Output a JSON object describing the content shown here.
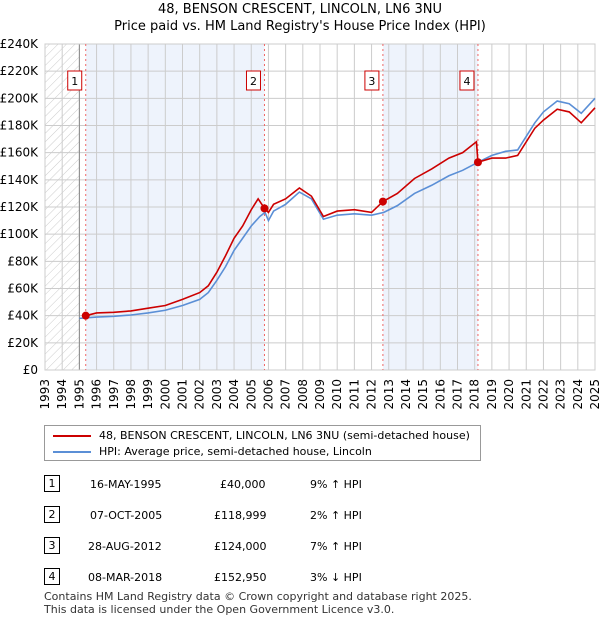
{
  "chart_data": {
    "type": "line",
    "title": "48, BENSON CRESCENT, LINCOLN, LN6 3NU",
    "subtitle": "Price paid vs. HM Land Registry's House Price Index (HPI)",
    "xlim": [
      1993,
      2025
    ],
    "ylim": [
      0,
      240000
    ],
    "x_ticks": [
      "1993",
      "1994",
      "1995",
      "1996",
      "1997",
      "1998",
      "1999",
      "2000",
      "2001",
      "2002",
      "2003",
      "2004",
      "2005",
      "2006",
      "2007",
      "2008",
      "2009",
      "2010",
      "2011",
      "2012",
      "2013",
      "2014",
      "2015",
      "2016",
      "2017",
      "2018",
      "2019",
      "2020",
      "2021",
      "2022",
      "2023",
      "2024",
      "2025"
    ],
    "y_ticks": [
      "£0",
      "£20K",
      "£40K",
      "£60K",
      "£80K",
      "£100K",
      "£120K",
      "£140K",
      "£160K",
      "£180K",
      "£200K",
      "£220K",
      "£240K"
    ],
    "grid": true,
    "series": [
      {
        "name": "48, BENSON CRESCENT, LINCOLN, LN6 3NU (semi-detached house)",
        "color": "#cc0000",
        "x": [
          1995.37,
          1996,
          1997,
          1998,
          1999,
          2000,
          2001,
          2002,
          2002.5,
          2003,
          2003.5,
          2004,
          2004.5,
          2005,
          2005.4,
          2005.77,
          2006,
          2006.3,
          2007,
          2007.8,
          2008.5,
          2009.2,
          2010,
          2011,
          2012,
          2012.66,
          2013.5,
          2014.5,
          2015.5,
          2016.5,
          2017.3,
          2018.1,
          2018.19,
          2019,
          2019.8,
          2020.5,
          2021.5,
          2022,
          2022.8,
          2023.5,
          2024.2,
          2025
        ],
        "y": [
          40000,
          42000,
          42500,
          43500,
          45500,
          47500,
          52000,
          57000,
          62000,
          72000,
          84000,
          97000,
          106000,
          118000,
          126000,
          118999,
          116000,
          122000,
          126000,
          134000,
          128000,
          113000,
          117000,
          118000,
          116000,
          124000,
          130000,
          141000,
          148000,
          156000,
          160000,
          168000,
          152950,
          156000,
          156000,
          158000,
          178000,
          184000,
          192000,
          190000,
          182000,
          193000
        ]
      },
      {
        "name": "HPI: Average price, semi-detached house, Lincoln",
        "color": "#5b8fd6",
        "x": [
          1995,
          1996,
          1997,
          1998,
          1999,
          2000,
          2001,
          2002,
          2002.5,
          2003,
          2003.5,
          2004,
          2004.5,
          2005,
          2005.5,
          2005.8,
          2006,
          2006.3,
          2007,
          2007.8,
          2008.5,
          2009.2,
          2010,
          2011,
          2012,
          2012.7,
          2013.5,
          2014.5,
          2015.5,
          2016.5,
          2017.3,
          2018.2,
          2019,
          2019.8,
          2020.5,
          2021.5,
          2022,
          2022.8,
          2023.5,
          2024.2,
          2025
        ],
        "y": [
          38000,
          39000,
          39500,
          40500,
          42000,
          44000,
          47500,
          52000,
          57000,
          66000,
          76000,
          88000,
          97000,
          106000,
          113000,
          116000,
          110000,
          117000,
          122000,
          131000,
          126000,
          111000,
          114000,
          115000,
          114000,
          116000,
          121000,
          130000,
          136000,
          143000,
          147000,
          153000,
          158000,
          161000,
          162000,
          182000,
          190000,
          198000,
          196000,
          189000,
          200000
        ]
      }
    ],
    "sales": [
      {
        "label": "1",
        "x": 1995.37,
        "y": 40000
      },
      {
        "label": "2",
        "x": 2005.77,
        "y": 118999
      },
      {
        "label": "3",
        "x": 2012.66,
        "y": 124000
      },
      {
        "label": "4",
        "x": 2018.19,
        "y": 152950
      }
    ],
    "legend_position": "below"
  },
  "table": [
    {
      "num": "1",
      "date": "16-MAY-1995",
      "price": "£40,000",
      "hpi": "9% ↑ HPI"
    },
    {
      "num": "2",
      "date": "07-OCT-2005",
      "price": "£118,999",
      "hpi": "2% ↑ HPI"
    },
    {
      "num": "3",
      "date": "28-AUG-2012",
      "price": "£124,000",
      "hpi": "7% ↑ HPI"
    },
    {
      "num": "4",
      "date": "08-MAR-2018",
      "price": "£152,950",
      "hpi": "3% ↓ HPI"
    }
  ],
  "footer": [
    "Contains HM Land Registry data © Crown copyright and database right 2025.",
    "This data is licensed under the Open Government Licence v3.0."
  ]
}
